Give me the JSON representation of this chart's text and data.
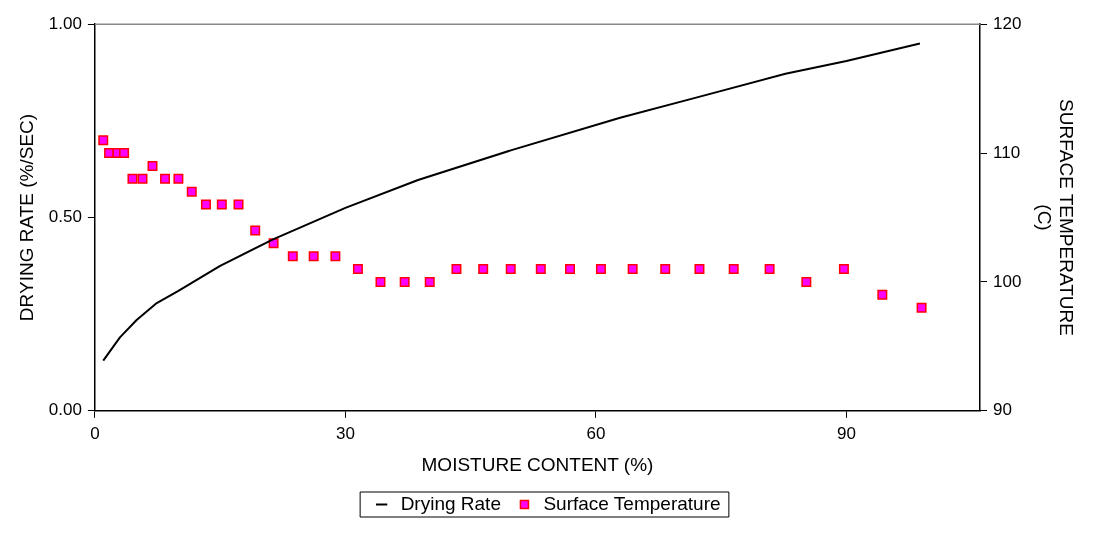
{
  "chart_data": {
    "type": "line",
    "xlabel": "MOISTURE CONTENT (%)",
    "ylabel": "DRYING RATE (%/SEC)",
    "y2label": "SURFACE TEMPERATURE (C)",
    "xlim": [
      0,
      106
    ],
    "xticks": [
      0,
      30,
      60,
      90
    ],
    "ylim": [
      0,
      1
    ],
    "yticks": [
      {
        "value": 0,
        "label": "0.00"
      },
      {
        "value": 0.5,
        "label": "0.50"
      },
      {
        "value": 1,
        "label": "1.00"
      }
    ],
    "y2lim": [
      90,
      120
    ],
    "y2ticks": [
      90,
      100,
      110,
      120
    ],
    "grid": false,
    "legend": "bottom",
    "series": [
      {
        "name": "Drying Rate",
        "color": "#000000",
        "marker": "none",
        "line_style": "solid",
        "x": [
          1,
          3,
          5,
          7.3,
          10,
          15,
          21.4,
          30,
          38.7,
          50,
          62.9,
          72,
          82.7,
          90,
          98.8
        ],
        "values": [
          0.13,
          0.19,
          0.235,
          0.277,
          0.31,
          0.375,
          0.444,
          0.525,
          0.597,
          0.675,
          0.758,
          0.81,
          0.872,
          0.905,
          0.95
        ]
      },
      {
        "name": "Surface Temperature",
        "type": "scatter",
        "axis": "y2",
        "color": "#ff00ff",
        "marker": "square",
        "x": [
          1,
          1.7,
          2.7,
          3.5,
          4.5,
          5.7,
          6.9,
          8.4,
          10,
          11.6,
          13.3,
          15.2,
          17.2,
          19.2,
          21.4,
          23.7,
          26.2,
          28.8,
          31.5,
          34.2,
          37.1,
          40.1,
          43.3,
          46.5,
          49.8,
          53.4,
          56.9,
          60.6,
          64.4,
          68.3,
          72.4,
          76.5,
          80.8,
          85.2,
          89.7,
          94.3,
          99
        ],
        "values": [
          111,
          110,
          110,
          110,
          108,
          108,
          109,
          108,
          108,
          107,
          106,
          106,
          106,
          104,
          103,
          102,
          102,
          102,
          101,
          100,
          100,
          100,
          101,
          101,
          101,
          101,
          101,
          101,
          101,
          101,
          101,
          101,
          101,
          100,
          101,
          99,
          98
        ]
      }
    ]
  }
}
